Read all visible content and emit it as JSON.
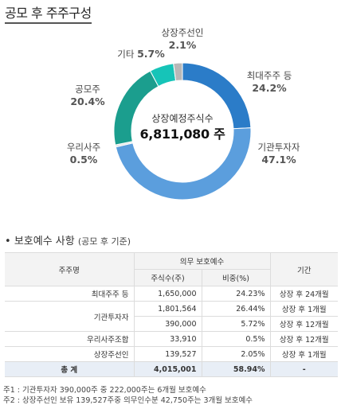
{
  "page": {
    "title": "공모 후 주주구성"
  },
  "chart_data": {
    "type": "pie",
    "style": "donut",
    "center_label": "상장예정주식수",
    "center_value": "6,811,080 주",
    "slices": [
      {
        "name": "최대주주 등",
        "value": 24.2,
        "pct_label": "24.2%",
        "color": "#2b7cc8"
      },
      {
        "name": "기관투자자",
        "value": 47.1,
        "pct_label": "47.1%",
        "color": "#5b9edd"
      },
      {
        "name": "우리사주",
        "value": 0.5,
        "pct_label": "0.5%",
        "color": "#e6e6e6"
      },
      {
        "name": "공모주",
        "value": 20.4,
        "pct_label": "20.4%",
        "color": "#1b9e8e"
      },
      {
        "name": "기타",
        "value": 5.7,
        "pct_label": "5.7%",
        "color": "#16c4b8"
      },
      {
        "name": "상장주선인",
        "value": 2.1,
        "pct_label": "2.1%",
        "color": "#b8b8b8"
      }
    ]
  },
  "lockup": {
    "heading": "보호예수 사항",
    "heading_sub": "(공모 후 기준)",
    "bullet": "•",
    "headers": {
      "holder": "주주명",
      "group": "의무 보호예수",
      "shares": "주식수(주)",
      "ratio": "비중(%)",
      "period": "기간"
    },
    "rows": [
      {
        "holder": "최대주주 등",
        "shares": "1,650,000",
        "ratio": "24.23%",
        "period": "상장 후 24개월"
      },
      {
        "holder": "기관투자자",
        "shares": "1,801,564",
        "ratio": "26.44%",
        "period": "상장 후 1개월"
      },
      {
        "holder": "",
        "shares": "390,000",
        "ratio": "5.72%",
        "period": "상장 후 12개월"
      },
      {
        "holder": "우리사주조합",
        "shares": "33,910",
        "ratio": "0.5%",
        "period": "상장 후 12개월"
      },
      {
        "holder": "상장주선인",
        "shares": "139,527",
        "ratio": "2.05%",
        "period": "상장 후 1개월"
      }
    ],
    "total": {
      "holder": "총 계",
      "shares": "4,015,001",
      "ratio": "58.94%",
      "period": "-"
    },
    "notes": [
      "주1 : 기관투자자 390,000주 중 222,000주는 6개월 보호예수",
      "주2 : 상장주선인 보유 139,527주중 의무인수분 42,750주는 3개월 보호예수"
    ]
  }
}
